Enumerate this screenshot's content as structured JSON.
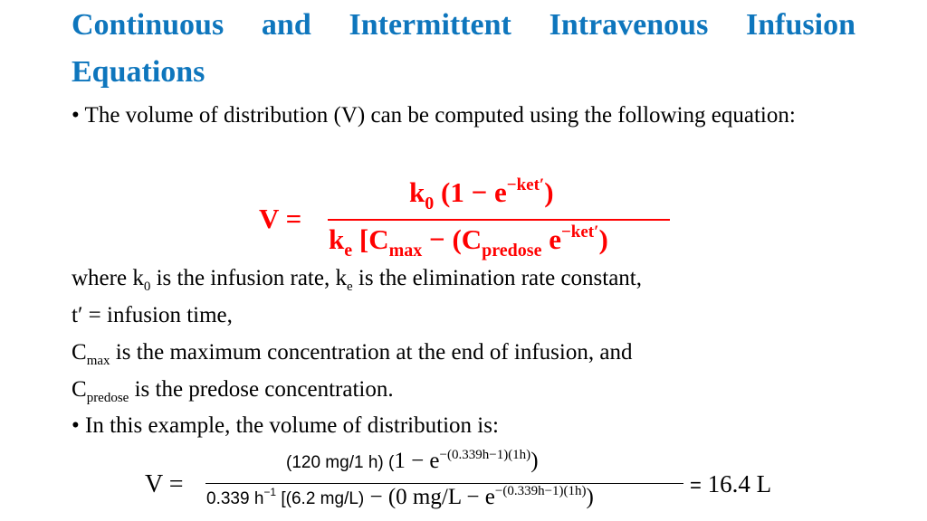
{
  "colors": {
    "title": "#0e76bd",
    "formula": "#ff0000"
  },
  "title": "Continuous and Intermittent Intravenous Infusion Equations",
  "bullet1": "• The volume of distribution (V) can be computed using the following equation:",
  "formula1": {
    "lhs": "V =",
    "num_k": "k",
    "num_k_sub": "0",
    "num_paren": " (1 − e",
    "num_exp": "−ket′",
    "num_close": ")",
    "den_k": "k",
    "den_k_sub": "e",
    "den_c": " [C",
    "den_c_sub": "max",
    "den_mid": "  −  (C",
    "den_pre_sub": "predose",
    "den_e": " e",
    "den_exp": "−ket′",
    "den_close": ")"
  },
  "where": {
    "l1a": "where k",
    "l1b": "0",
    "l1c": " is the infusion rate, k",
    "l1d": "e",
    "l1e": " is the elimination rate constant,",
    "l2": "t′ = infusion time,",
    "l3a": "C",
    "l3b": "max",
    "l3c": " is the maximum concentration at the end of infusion, and",
    "l4a": "C",
    "l4b": "predose",
    "l4c": " is the predose concentration."
  },
  "bullet2": "• In this example, the volume of distribution is:",
  "formula2": {
    "lhs": "V =",
    "num_a": "(120 mg/1 h) (",
    "num_b": "1 − e",
    "num_exp": "−(0.339h−1)(1h)",
    "num_close": ")",
    "den_a": "0.339 h",
    "den_a_exp": "−1",
    "den_b": " [(6.2 mg/L)",
    "den_c": " − (0 mg/L − e",
    "den_exp": "−(0.339h−1)(1h)",
    "den_close": ")",
    "result_eq": "=",
    "result": " 16.4 L"
  }
}
